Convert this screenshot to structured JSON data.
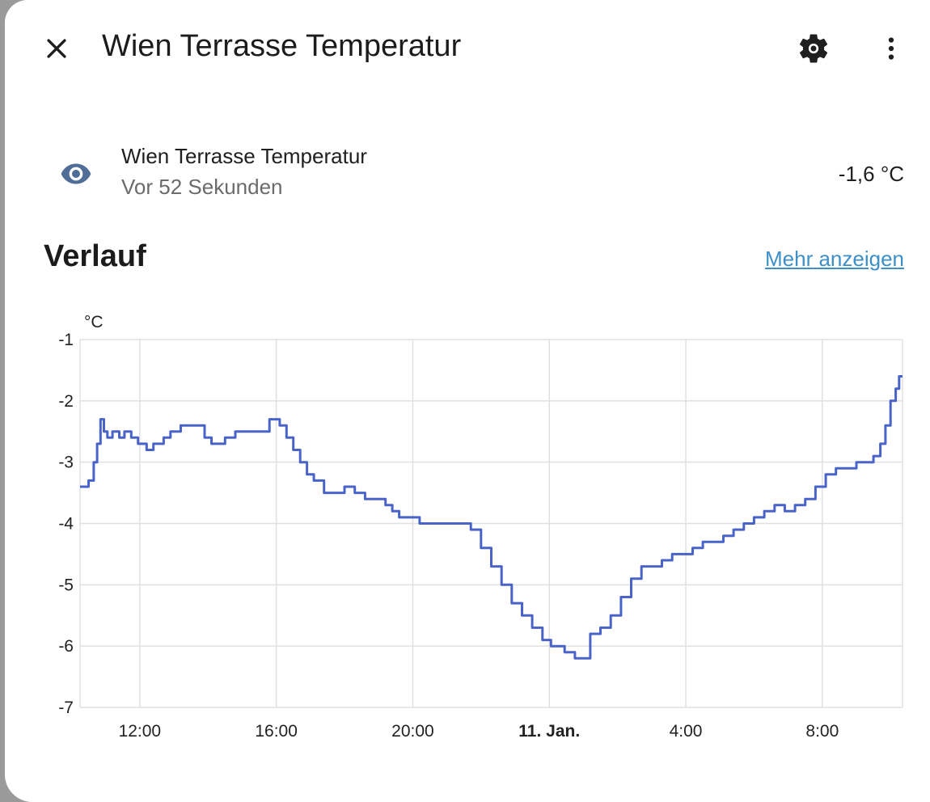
{
  "dialog": {
    "title": "Wien Terrasse Temperatur",
    "icons": {
      "close": "close-icon",
      "settings": "gear-icon",
      "more": "dots-vertical-icon"
    }
  },
  "entity": {
    "icon": "eye-icon",
    "name": "Wien Terrasse Temperatur",
    "last_changed": "Vor 52 Sekunden",
    "state": "-1,6 °C"
  },
  "history": {
    "title": "Verlauf",
    "more_label": "Mehr anzeigen"
  },
  "colors": {
    "line": "#4a63c8",
    "link": "#3d8fc8",
    "icon": "#4f6d96",
    "grid": "#e0e0e0"
  },
  "chart_data": {
    "type": "line",
    "ylabel": "°C",
    "ylim": [
      -7,
      -1
    ],
    "y_ticks": [
      "-1",
      "-2",
      "-3",
      "-4",
      "-5",
      "-6",
      "-7"
    ],
    "x_range_hours": [
      10.25,
      34.35
    ],
    "x_ticks": [
      {
        "t": 12,
        "label": "12:00",
        "bold": false
      },
      {
        "t": 16,
        "label": "16:00",
        "bold": false
      },
      {
        "t": 20,
        "label": "20:00",
        "bold": false
      },
      {
        "t": 24,
        "label": "11. Jan.",
        "bold": true
      },
      {
        "t": 28,
        "label": "4:00",
        "bold": false
      },
      {
        "t": 32,
        "label": "8:00",
        "bold": false
      }
    ],
    "series": [
      {
        "x": [
          10.25,
          10.35,
          10.5,
          10.65,
          10.75,
          10.85,
          10.95,
          11.05,
          11.2,
          11.4,
          11.55,
          11.75,
          11.95,
          12.2,
          12.4,
          12.7,
          12.9,
          13.2,
          13.5,
          13.9,
          14.1,
          14.5,
          14.8,
          15.1,
          15.5,
          15.8,
          16.1,
          16.3,
          16.5,
          16.7,
          16.9,
          17.1,
          17.4,
          17.7,
          18.0,
          18.3,
          18.6,
          18.9,
          19.2,
          19.4,
          19.6,
          19.9,
          20.2,
          20.5,
          20.8,
          21.1,
          21.4,
          21.7,
          22.0,
          22.3,
          22.6,
          22.9,
          23.2,
          23.5,
          23.8,
          24.05,
          24.25,
          24.45,
          24.75,
          24.95,
          25.2,
          25.5,
          25.8,
          26.1,
          26.4,
          26.7,
          27.0,
          27.3,
          27.6,
          27.9,
          28.2,
          28.5,
          28.8,
          29.1,
          29.4,
          29.7,
          30.0,
          30.3,
          30.6,
          30.9,
          31.2,
          31.5,
          31.8,
          32.1,
          32.4,
          32.7,
          33.0,
          33.3,
          33.5,
          33.7,
          33.85,
          34.0,
          34.15,
          34.25,
          34.35
        ],
        "y": [
          -3.4,
          -3.4,
          -3.3,
          -3.0,
          -2.7,
          -2.3,
          -2.5,
          -2.6,
          -2.5,
          -2.6,
          -2.5,
          -2.6,
          -2.7,
          -2.8,
          -2.7,
          -2.6,
          -2.5,
          -2.4,
          -2.4,
          -2.6,
          -2.7,
          -2.6,
          -2.5,
          -2.5,
          -2.5,
          -2.3,
          -2.4,
          -2.6,
          -2.8,
          -3.0,
          -3.2,
          -3.3,
          -3.5,
          -3.5,
          -3.4,
          -3.5,
          -3.6,
          -3.6,
          -3.7,
          -3.8,
          -3.9,
          -3.9,
          -4.0,
          -4.0,
          -4.0,
          -4.0,
          -4.0,
          -4.1,
          -4.4,
          -4.7,
          -5.0,
          -5.3,
          -5.5,
          -5.7,
          -5.9,
          -6.0,
          -6.0,
          -6.1,
          -6.2,
          -6.2,
          -5.8,
          -5.7,
          -5.5,
          -5.2,
          -4.9,
          -4.7,
          -4.7,
          -4.6,
          -4.5,
          -4.5,
          -4.4,
          -4.3,
          -4.3,
          -4.2,
          -4.1,
          -4.0,
          -3.9,
          -3.8,
          -3.7,
          -3.8,
          -3.7,
          -3.6,
          -3.4,
          -3.2,
          -3.1,
          -3.1,
          -3.0,
          -3.0,
          -2.9,
          -2.7,
          -2.4,
          -2.0,
          -1.8,
          -1.6,
          -1.6
        ]
      }
    ]
  }
}
